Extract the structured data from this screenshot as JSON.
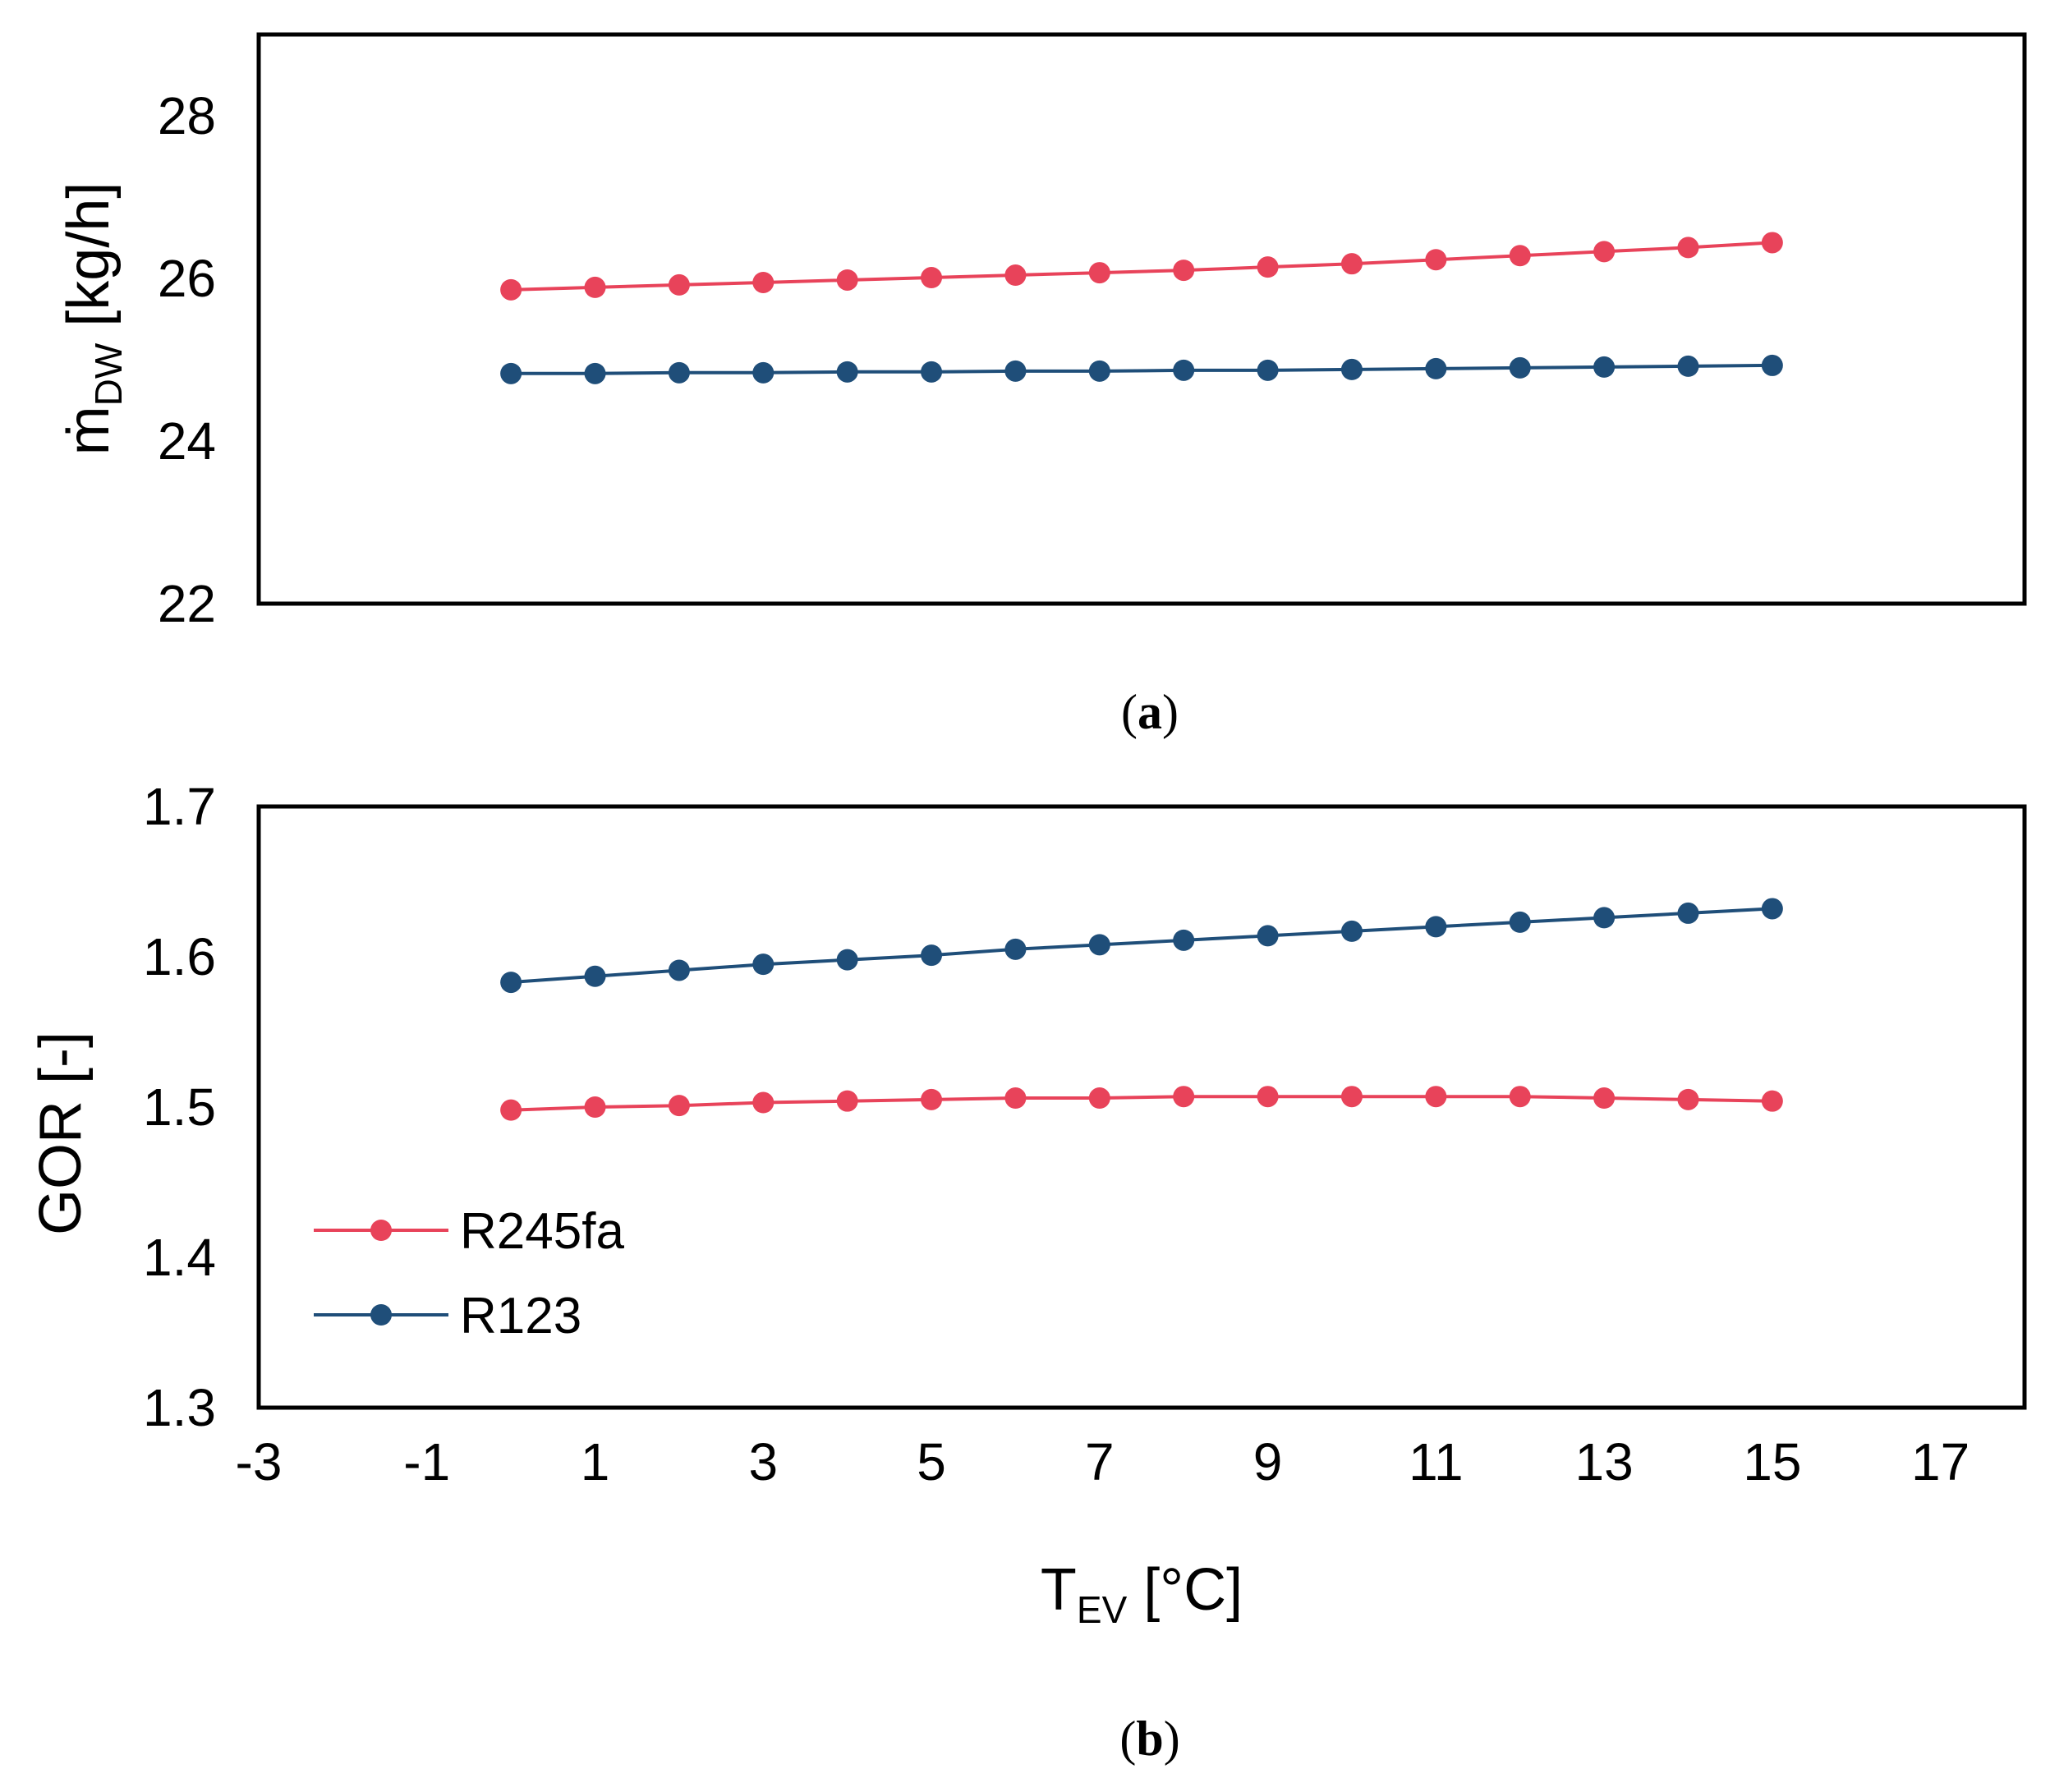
{
  "colors": {
    "R245fa": "#e8435a",
    "R123": "#1f4e79"
  },
  "chart_data": [
    {
      "type": "line",
      "panel": "a",
      "caption": {
        "open": "(",
        "label": "a",
        "close": ")"
      },
      "ylabel": {
        "main": "ṁ",
        "sub": "DW",
        "unit": " [kg/h]"
      },
      "ylim": [
        22,
        29
      ],
      "yticks": [
        "22",
        "24",
        "26",
        "28"
      ],
      "xlim": [
        -3,
        18
      ],
      "x": [
        0,
        1,
        2,
        3,
        4,
        5,
        6,
        7,
        8,
        9,
        10,
        11,
        12,
        13,
        14,
        15
      ],
      "series": [
        {
          "name": "R245fa",
          "values": [
            25.86,
            25.89,
            25.92,
            25.95,
            25.98,
            26.01,
            26.04,
            26.07,
            26.1,
            26.14,
            26.18,
            26.23,
            26.28,
            26.33,
            26.38,
            26.44
          ]
        },
        {
          "name": "R123",
          "values": [
            24.83,
            24.83,
            24.84,
            24.84,
            24.85,
            24.85,
            24.86,
            24.86,
            24.87,
            24.87,
            24.88,
            24.89,
            24.9,
            24.91,
            24.92,
            24.93
          ]
        }
      ]
    },
    {
      "type": "line",
      "panel": "b",
      "caption": {
        "open": "(",
        "label": "b",
        "close": ")"
      },
      "ylabel": {
        "main": "GOR [-]"
      },
      "xlabel": {
        "main": "T",
        "sub": "EV",
        "unit": " [°C]"
      },
      "ylim": [
        1.3,
        1.7
      ],
      "yticks": [
        "1.3",
        "1.4",
        "1.5",
        "1.6",
        "1.7"
      ],
      "xlim": [
        -3,
        18
      ],
      "xticks": [
        "-3",
        "-1",
        "1",
        "3",
        "5",
        "7",
        "9",
        "11",
        "13",
        "15",
        "17"
      ],
      "x": [
        0,
        1,
        2,
        3,
        4,
        5,
        6,
        7,
        8,
        9,
        10,
        11,
        12,
        13,
        14,
        15
      ],
      "legend": {
        "position": "left",
        "entries": [
          "R245fa",
          "R123"
        ]
      },
      "series": [
        {
          "name": "R245fa",
          "values": [
            1.498,
            1.5,
            1.501,
            1.503,
            1.504,
            1.505,
            1.506,
            1.506,
            1.507,
            1.507,
            1.507,
            1.507,
            1.507,
            1.506,
            1.505,
            1.504
          ]
        },
        {
          "name": "R123",
          "values": [
            1.583,
            1.587,
            1.591,
            1.595,
            1.598,
            1.601,
            1.605,
            1.608,
            1.611,
            1.614,
            1.617,
            1.62,
            1.623,
            1.626,
            1.629,
            1.632
          ]
        }
      ]
    }
  ]
}
